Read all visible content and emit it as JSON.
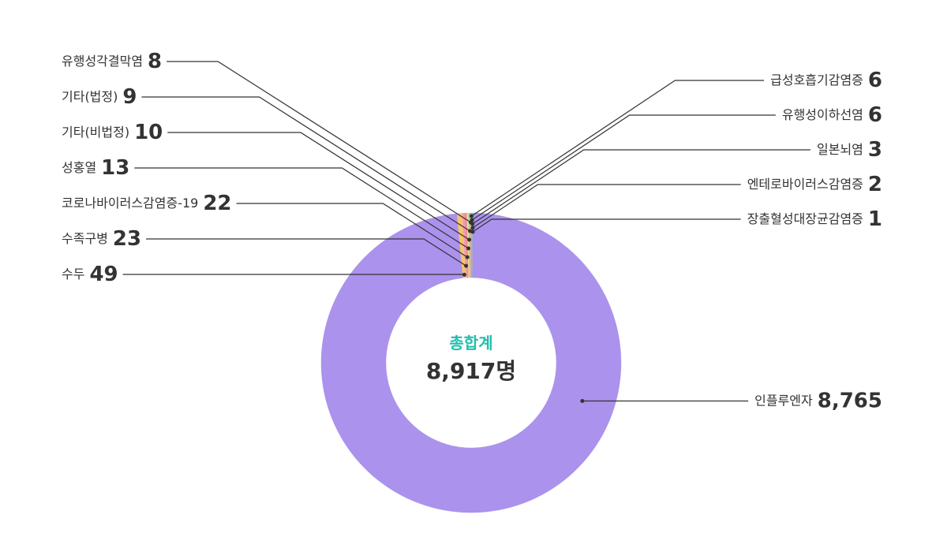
{
  "chart_data": {
    "type": "donut",
    "center_title": "총합계",
    "center_value": "8,917명",
    "categories": [
      "급성호흡기감염증",
      "유행성이하선염",
      "일본뇌염",
      "엔테로바이러스감염증",
      "장출혈성대장균감염증",
      "인플루엔자",
      "수두",
      "수족구병",
      "코로나바이러스감염증-19",
      "성홍열",
      "기타(비법정)",
      "기타(법정)",
      "유행성각결막염"
    ],
    "values": [
      6,
      6,
      3,
      2,
      1,
      8765,
      49,
      23,
      22,
      13,
      10,
      9,
      8
    ],
    "value_labels": [
      "6",
      "6",
      "3",
      "2",
      "1",
      "8,765",
      "49",
      "23",
      "22",
      "13",
      "10",
      "9",
      "8"
    ],
    "colors": [
      "#3fbfae",
      "#7cc7e0",
      "#5aa9e6",
      "#f5d36b",
      "#a6dc72",
      "#ab92ec",
      "#f7c46a",
      "#f49ac1",
      "#f28b8b",
      "#fbe07a",
      "#9fd89c",
      "#80d0c7",
      "#f4a6a6"
    ]
  }
}
